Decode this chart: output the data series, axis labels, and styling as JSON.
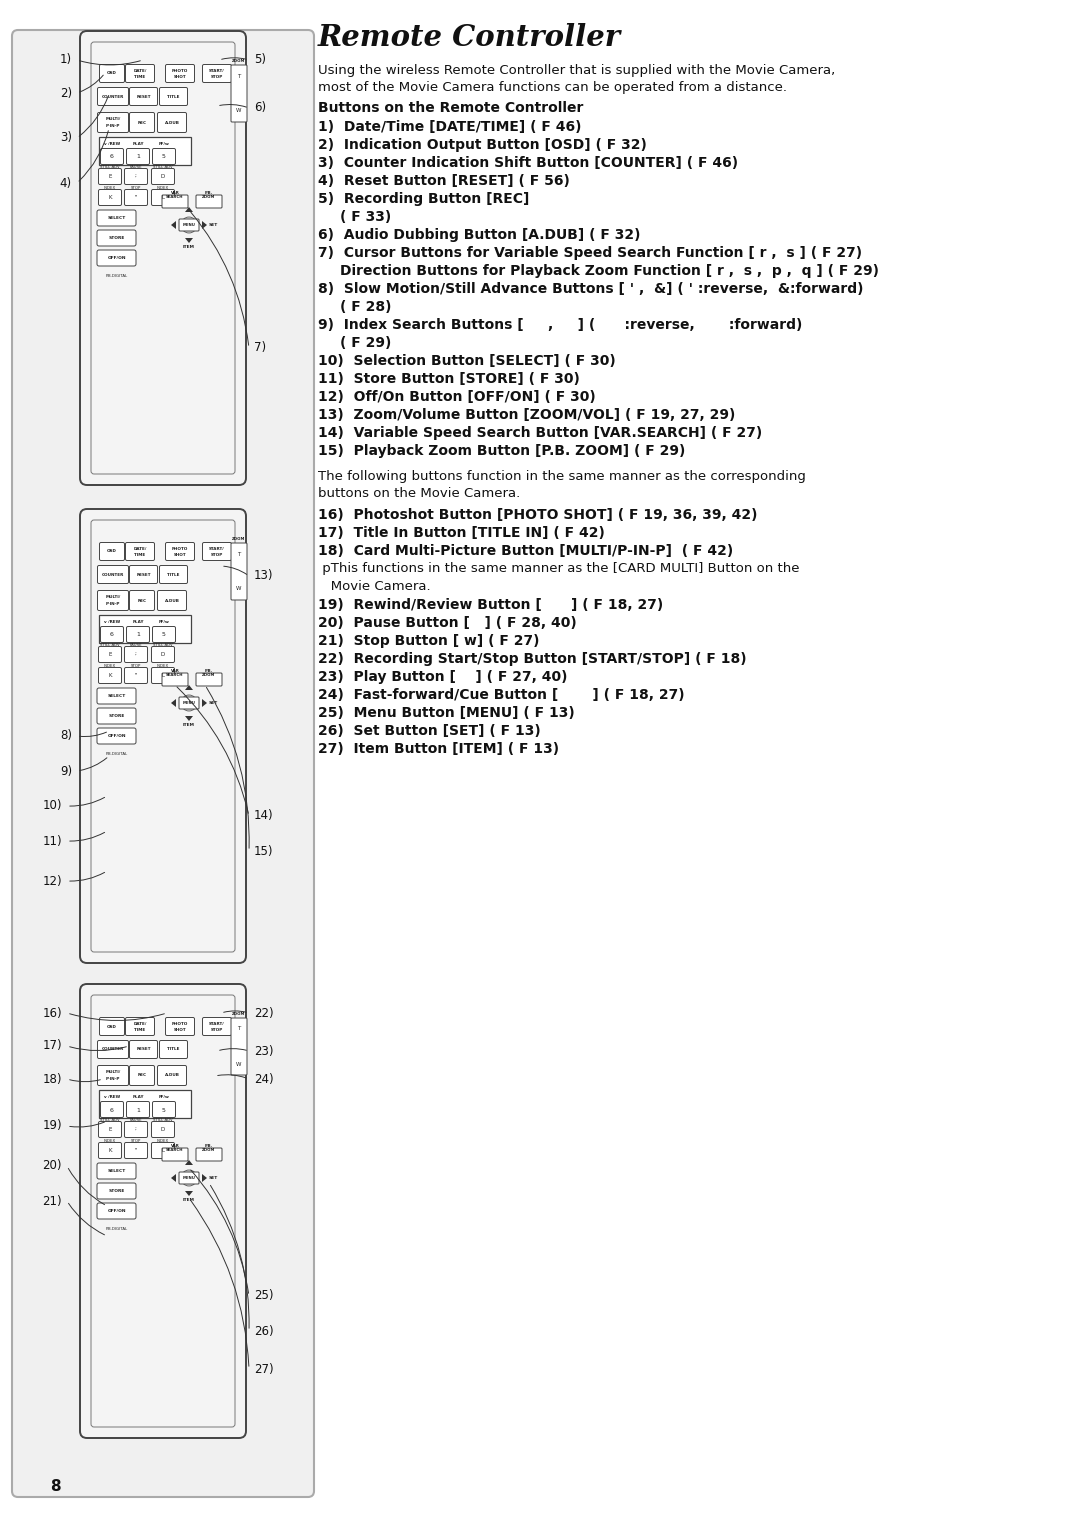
{
  "title": "Remote Controller",
  "bg_color": "#ffffff",
  "intro_text": "Using the wireless Remote Controller that is supplied with the Movie Camera,\nmost of the Movie Camera functions can be operated from a distance.",
  "bold_header": "Buttons on the Remote Controller",
  "items_1": [
    [
      "1)",
      "Date/Time [DATE/TIME] ( F 46)"
    ],
    [
      "2)",
      "Indication Output Button [OSD] ( F 32)"
    ],
    [
      "3)",
      "Counter Indication Shift Button [COUNTER] ( F 46)"
    ],
    [
      "4)",
      "Reset Button [RESET] ( F 56)"
    ],
    [
      "5)",
      "Recording Button [REC]"
    ],
    [
      "",
      "( F 33)"
    ],
    [
      "6)",
      "Audio Dubbing Button [A.DUB] ( F 32)"
    ],
    [
      "7)",
      "Cursor Buttons for Variable Speed Search Function [ r ,  s ] ( F 27)"
    ],
    [
      "",
      "Direction Buttons for Playback Zoom Function [ r ,  s ,  p ,  q ] ( F 29)"
    ],
    [
      "8)",
      "Slow Motion/Still Advance Buttons [ ' ,  &] ( ' :reverse,  &:forward)"
    ],
    [
      "",
      "( F 28)"
    ],
    [
      "9)",
      "Index Search Buttons [     ,     ] (      :reverse,       :forward)"
    ],
    [
      "",
      "( F 29)"
    ],
    [
      "10)",
      "Selection Button [SELECT] ( F 30)"
    ],
    [
      "11)",
      "Store Button [STORE] ( F 30)"
    ],
    [
      "12)",
      "Off/On Button [OFF/ON] ( F 30)"
    ],
    [
      "13)",
      "Zoom/Volume Button [ZOOM/VOL] ( F 19, 27, 29)"
    ],
    [
      "14)",
      "Variable Speed Search Button [VAR.SEARCH] ( F 27)"
    ],
    [
      "15)",
      "Playback Zoom Button [P.B. ZOOM] ( F 29)"
    ]
  ],
  "middle_text": "The following buttons function in the same manner as the corresponding\nbuttons on the Movie Camera.",
  "items_2": [
    [
      "16)",
      "Photoshot Button [PHOTO SHOT] ( F 19, 36, 39, 42)"
    ],
    [
      "17)",
      "Title In Button [TITLE IN] ( F 42)"
    ],
    [
      "18)",
      "Card Multi-Picture Button [MULTI/P-IN-P]  ( F 42)"
    ],
    [
      "",
      " pThis functions in the same manner as the [CARD MULTI] Button on the"
    ],
    [
      "",
      "   Movie Camera."
    ],
    [
      "19)",
      "Rewind/Review Button [      ] ( F 18, 27)"
    ],
    [
      "20)",
      "Pause Button [   ] ( F 28, 40)"
    ],
    [
      "21)",
      "Stop Button [ w] ( F 27)"
    ],
    [
      "22)",
      "Recording Start/Stop Button [START/STOP] ( F 18)"
    ],
    [
      "23)",
      "Play Button [    ] ( F 27, 40)"
    ],
    [
      "24)",
      "Fast-forward/Cue Button [       ] ( F 18, 27)"
    ],
    [
      "25)",
      "Menu Button [MENU] ( F 13)"
    ],
    [
      "26)",
      "Set Button [SET] ( F 13)"
    ],
    [
      "27)",
      "Item Button [ITEM] ( F 13)"
    ]
  ],
  "page_number": "8"
}
